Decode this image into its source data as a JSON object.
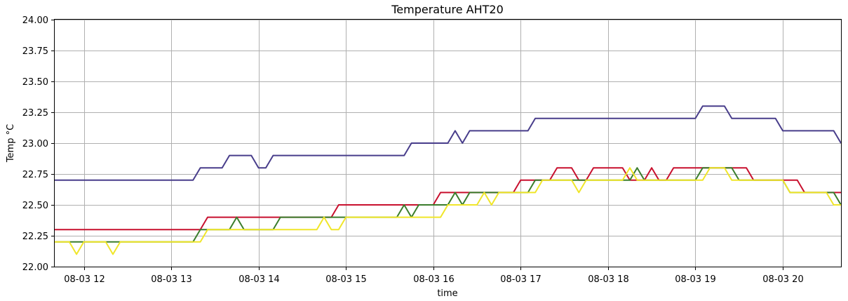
{
  "chart_data": {
    "type": "line",
    "title": "Temperature AHT20",
    "xlabel": "time",
    "ylabel": "Temp °C",
    "ylim": [
      22.0,
      24.0
    ],
    "xlim": [
      "08-03 11:40",
      "08-03 20:40"
    ],
    "grid": true,
    "legend": "none",
    "x_ticks": [
      "08-03 12",
      "08-03 13",
      "08-03 14",
      "08-03 15",
      "08-03 16",
      "08-03 17",
      "08-03 18",
      "08-03 19",
      "08-03 20"
    ],
    "y_ticks": [
      "22.00",
      "22.25",
      "22.50",
      "22.75",
      "23.00",
      "23.25",
      "23.50",
      "23.75",
      "24.00"
    ],
    "series": [
      {
        "color": "#483d8b",
        "points": [
          [
            "08-03 11:40",
            22.7
          ],
          [
            "08-03 13:15",
            22.7
          ],
          [
            "08-03 13:20",
            22.8
          ],
          [
            "08-03 13:35",
            22.8
          ],
          [
            "08-03 13:40",
            22.9
          ],
          [
            "08-03 13:55",
            22.9
          ],
          [
            "08-03 14:00",
            22.8
          ],
          [
            "08-03 14:05",
            22.8
          ],
          [
            "08-03 14:10",
            22.9
          ],
          [
            "08-03 15:40",
            22.9
          ],
          [
            "08-03 15:45",
            23.0
          ],
          [
            "08-03 16:10",
            23.0
          ],
          [
            "08-03 16:15",
            23.1
          ],
          [
            "08-03 16:20",
            23.0
          ],
          [
            "08-03 16:25",
            23.1
          ],
          [
            "08-03 17:05",
            23.1
          ],
          [
            "08-03 17:10",
            23.2
          ],
          [
            "08-03 19:00",
            23.2
          ],
          [
            "08-03 19:05",
            23.3
          ],
          [
            "08-03 19:20",
            23.3
          ],
          [
            "08-03 19:25",
            23.2
          ],
          [
            "08-03 19:55",
            23.2
          ],
          [
            "08-03 20:00",
            23.1
          ],
          [
            "08-03 20:35",
            23.1
          ],
          [
            "08-03 20:40",
            23.0
          ]
        ]
      },
      {
        "color": "#c8102e",
        "points": [
          [
            "08-03 11:40",
            22.3
          ],
          [
            "08-03 13:20",
            22.3
          ],
          [
            "08-03 13:25",
            22.4
          ],
          [
            "08-03 14:50",
            22.4
          ],
          [
            "08-03 14:55",
            22.5
          ],
          [
            "08-03 16:00",
            22.5
          ],
          [
            "08-03 16:05",
            22.6
          ],
          [
            "08-03 16:55",
            22.6
          ],
          [
            "08-03 17:00",
            22.7
          ],
          [
            "08-03 17:20",
            22.7
          ],
          [
            "08-03 17:25",
            22.8
          ],
          [
            "08-03 17:35",
            22.8
          ],
          [
            "08-03 17:40",
            22.7
          ],
          [
            "08-03 17:45",
            22.7
          ],
          [
            "08-03 17:50",
            22.8
          ],
          [
            "08-03 18:10",
            22.8
          ],
          [
            "08-03 18:15",
            22.7
          ],
          [
            "08-03 18:25",
            22.7
          ],
          [
            "08-03 18:30",
            22.8
          ],
          [
            "08-03 18:35",
            22.7
          ],
          [
            "08-03 18:40",
            22.7
          ],
          [
            "08-03 18:45",
            22.8
          ],
          [
            "08-03 19:35",
            22.8
          ],
          [
            "08-03 19:40",
            22.7
          ],
          [
            "08-03 20:10",
            22.7
          ],
          [
            "08-03 20:15",
            22.6
          ],
          [
            "08-03 20:40",
            22.6
          ]
        ]
      },
      {
        "color": "#3a7d2c",
        "points": [
          [
            "08-03 11:40",
            22.2
          ],
          [
            "08-03 13:15",
            22.2
          ],
          [
            "08-03 13:20",
            22.3
          ],
          [
            "08-03 13:40",
            22.3
          ],
          [
            "08-03 13:45",
            22.4
          ],
          [
            "08-03 13:50",
            22.3
          ],
          [
            "08-03 14:10",
            22.3
          ],
          [
            "08-03 14:15",
            22.4
          ],
          [
            "08-03 15:35",
            22.4
          ],
          [
            "08-03 15:40",
            22.5
          ],
          [
            "08-03 15:45",
            22.4
          ],
          [
            "08-03 15:50",
            22.5
          ],
          [
            "08-03 16:10",
            22.5
          ],
          [
            "08-03 16:15",
            22.6
          ],
          [
            "08-03 16:20",
            22.5
          ],
          [
            "08-03 16:25",
            22.6
          ],
          [
            "08-03 17:05",
            22.6
          ],
          [
            "08-03 17:10",
            22.7
          ],
          [
            "08-03 18:15",
            22.7
          ],
          [
            "08-03 18:20",
            22.8
          ],
          [
            "08-03 18:25",
            22.7
          ],
          [
            "08-03 19:00",
            22.7
          ],
          [
            "08-03 19:05",
            22.8
          ],
          [
            "08-03 19:25",
            22.8
          ],
          [
            "08-03 19:30",
            22.7
          ],
          [
            "08-03 20:00",
            22.7
          ],
          [
            "08-03 20:05",
            22.6
          ],
          [
            "08-03 20:35",
            22.6
          ],
          [
            "08-03 20:40",
            22.5
          ]
        ]
      },
      {
        "color": "#f0e62a",
        "points": [
          [
            "08-03 11:40",
            22.2
          ],
          [
            "08-03 11:50",
            22.2
          ],
          [
            "08-03 11:55",
            22.1
          ],
          [
            "08-03 12:00",
            22.2
          ],
          [
            "08-03 12:15",
            22.2
          ],
          [
            "08-03 12:20",
            22.1
          ],
          [
            "08-03 12:25",
            22.2
          ],
          [
            "08-03 13:20",
            22.2
          ],
          [
            "08-03 13:25",
            22.3
          ],
          [
            "08-03 14:40",
            22.3
          ],
          [
            "08-03 14:45",
            22.4
          ],
          [
            "08-03 14:50",
            22.3
          ],
          [
            "08-03 14:55",
            22.3
          ],
          [
            "08-03 15:00",
            22.4
          ],
          [
            "08-03 16:05",
            22.4
          ],
          [
            "08-03 16:10",
            22.5
          ],
          [
            "08-03 16:30",
            22.5
          ],
          [
            "08-03 16:35",
            22.6
          ],
          [
            "08-03 16:40",
            22.5
          ],
          [
            "08-03 16:45",
            22.6
          ],
          [
            "08-03 17:10",
            22.6
          ],
          [
            "08-03 17:15",
            22.7
          ],
          [
            "08-03 17:35",
            22.7
          ],
          [
            "08-03 17:40",
            22.6
          ],
          [
            "08-03 17:45",
            22.7
          ],
          [
            "08-03 18:10",
            22.7
          ],
          [
            "08-03 18:15",
            22.8
          ],
          [
            "08-03 18:20",
            22.7
          ],
          [
            "08-03 19:05",
            22.7
          ],
          [
            "08-03 19:10",
            22.8
          ],
          [
            "08-03 19:20",
            22.8
          ],
          [
            "08-03 19:25",
            22.7
          ],
          [
            "08-03 20:00",
            22.7
          ],
          [
            "08-03 20:05",
            22.6
          ],
          [
            "08-03 20:30",
            22.6
          ],
          [
            "08-03 20:35",
            22.5
          ],
          [
            "08-03 20:40",
            22.5
          ]
        ]
      }
    ]
  }
}
